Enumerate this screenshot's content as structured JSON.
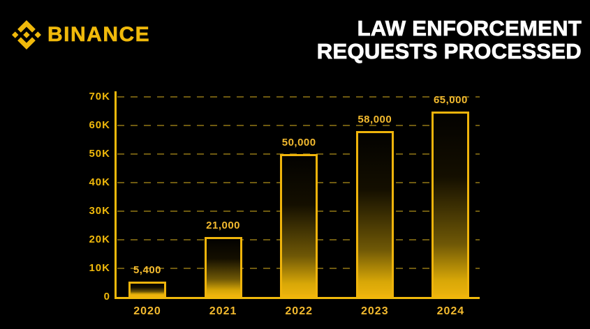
{
  "brand": {
    "name": "BINANCE",
    "logo_icon": "binance-diamond-icon",
    "color": "#F0B90B"
  },
  "title": {
    "line1": "LAW ENFORCEMENT",
    "line2": "REQUESTS PROCESSED"
  },
  "chart_data": {
    "type": "bar",
    "title": "Law Enforcement Requests Processed",
    "categories": [
      "2020",
      "2021",
      "2022",
      "2023",
      "2024"
    ],
    "values": [
      5400,
      21000,
      50000,
      58000,
      65000
    ],
    "value_labels": [
      "5,400",
      "21,000",
      "50,000",
      "58,000",
      "65,000"
    ],
    "ytick_labels": [
      "0",
      "10K",
      "20K",
      "30K",
      "40K",
      "50K",
      "60K",
      "70K"
    ],
    "ytick_values": [
      0,
      10000,
      20000,
      30000,
      40000,
      50000,
      60000,
      70000
    ],
    "ylim": [
      0,
      70000
    ],
    "xlabel": "",
    "ylabel": "",
    "grid": "horizontal-dashed",
    "legend": "none",
    "colors": {
      "background": "#000000",
      "axis": "#F0B90B",
      "grid": "#6E5A10",
      "bar_border": "#EFB40B",
      "bar_gradient_top": "#000000",
      "bar_gradient_bottom": "#EAB20C",
      "labels": "#F3BA2F",
      "title_text": "#FFFFFF"
    }
  }
}
